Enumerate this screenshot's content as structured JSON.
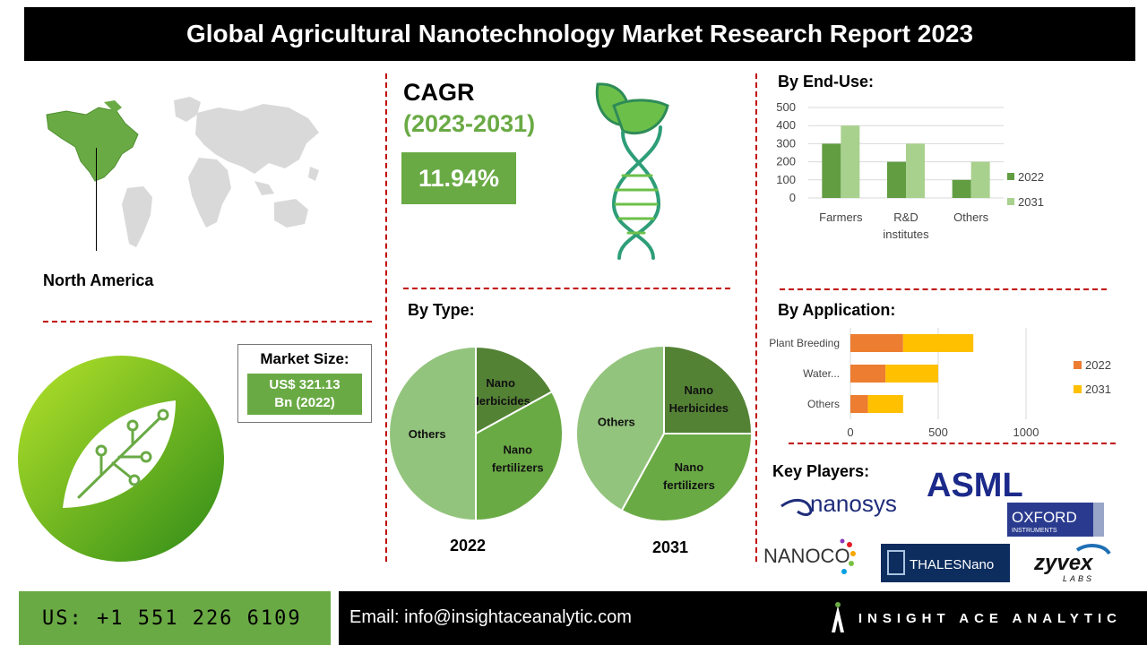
{
  "header": {
    "title": "Global Agricultural Nanotechnology Market Research Report 2023"
  },
  "region": {
    "label": "North America"
  },
  "market_size": {
    "title": "Market Size:",
    "value_line1": "US$ 321.13",
    "value_line2": "Bn (2022)"
  },
  "cagr": {
    "title": "CAGR",
    "period": "(2023-2031)",
    "value": "11.94%"
  },
  "sections": {
    "end_use": "By End-Use:",
    "type": "By Type:",
    "application": "By Application:",
    "key_players": "Key Players:"
  },
  "players": {
    "nanosys": "nanosys",
    "asml": "ASML",
    "oxford_1": "OXFORD",
    "oxford_2": "INSTRUMENTS",
    "nanoco": "NANOCO",
    "thalesnano": "THALESNano",
    "zyvex_1": "zyvex",
    "zyvex_2": "LABS"
  },
  "footer": {
    "phone": "US: +1 551 226 6109",
    "email": "Email: info@insightaceanalytic.com",
    "brand": "INSIGHT ACE ANALYTIC"
  },
  "colors": {
    "green": "#6aaa45",
    "dark_green": "#548235",
    "light_green": "#a9d18e",
    "orange": "#ed7d31",
    "yellow": "#ffc000",
    "dash_red": "#c00000"
  },
  "chart_data": [
    {
      "type": "bar",
      "title": "",
      "categories": [
        "Farmers",
        "R&D institutes",
        "Others"
      ],
      "category_lines": [
        [
          "Farmers"
        ],
        [
          "R&D",
          "institutes"
        ],
        [
          "Others"
        ]
      ],
      "series": [
        {
          "name": "2022",
          "values": [
            300,
            200,
            100
          ],
          "color": "#629d42"
        },
        {
          "name": "2031",
          "values": [
            400,
            300,
            200
          ],
          "color": "#a9d18e"
        }
      ],
      "ylim": [
        0,
        500
      ],
      "yticks": [
        0,
        100,
        200,
        300,
        400,
        500
      ],
      "grid": true,
      "legend": "right"
    },
    {
      "type": "bar",
      "orientation": "horizontal",
      "stacked": true,
      "title": "",
      "categories": [
        "Plant Breeding",
        "Water...",
        "Others"
      ],
      "series": [
        {
          "name": "2022",
          "values": [
            300,
            200,
            100
          ],
          "color": "#ed7d31"
        },
        {
          "name": "2031",
          "values": [
            400,
            300,
            200
          ],
          "color": "#ffc000"
        }
      ],
      "xlim": [
        0,
        1000
      ],
      "xticks": [
        0,
        500,
        1000
      ],
      "grid": true,
      "legend": "right"
    },
    {
      "type": "pie",
      "label": "2022",
      "slices": [
        {
          "lines": [
            "Nano",
            "Herbicides"
          ],
          "value": 17,
          "color": "#548235"
        },
        {
          "lines": [
            "Nano",
            "fertilizers"
          ],
          "value": 33,
          "color": "#6aaa45"
        },
        {
          "lines": [
            "Others"
          ],
          "value": 50,
          "color": "#93c47d"
        }
      ]
    },
    {
      "type": "pie",
      "label": "2031",
      "slices": [
        {
          "lines": [
            "Nano",
            "Herbicides"
          ],
          "value": 25,
          "color": "#548235"
        },
        {
          "lines": [
            "Nano",
            "fertilizers"
          ],
          "value": 33,
          "color": "#6aaa45"
        },
        {
          "lines": [
            "Others"
          ],
          "value": 42,
          "color": "#93c47d"
        }
      ]
    }
  ]
}
